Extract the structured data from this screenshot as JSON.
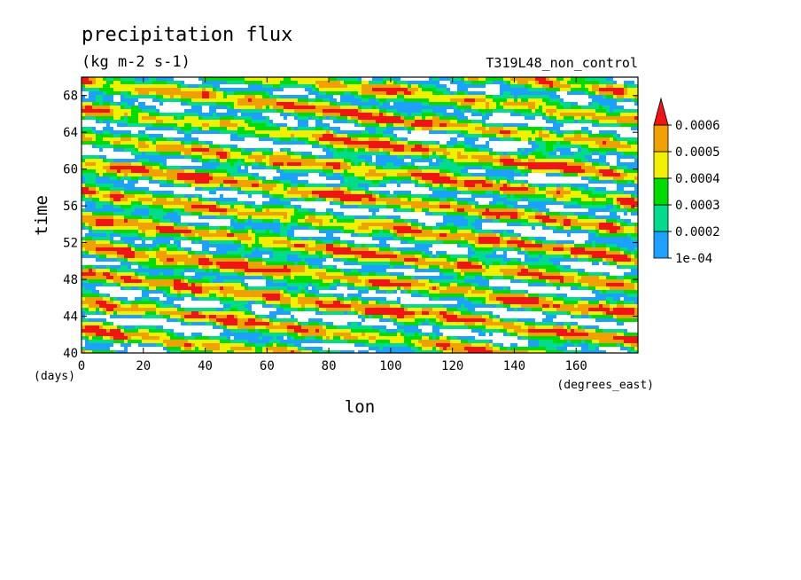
{
  "chart_data": {
    "type": "heatmap",
    "title": "precipitation flux",
    "units": "(kg m-2 s-1)",
    "run_label": "T319L48_non_control",
    "xlabel": "lon",
    "xunits": "(degrees_east)",
    "ylabel": "time",
    "yunits": "(days)",
    "xlim": [
      0,
      180
    ],
    "ylim": [
      40,
      70
    ],
    "xticks": [
      "0",
      "20",
      "40",
      "60",
      "80",
      "100",
      "120",
      "140",
      "160"
    ],
    "xtick_values": [
      0,
      20,
      40,
      60,
      80,
      100,
      120,
      140,
      160
    ],
    "yticks": [
      "40",
      "44",
      "48",
      "52",
      "56",
      "60",
      "64",
      "68"
    ],
    "ytick_values": [
      40,
      44,
      48,
      52,
      56,
      60,
      64,
      68
    ],
    "colorbar": {
      "labels": [
        "1e-04",
        "0.0002",
        "0.0003",
        "0.0004",
        "0.0005",
        "0.0006"
      ],
      "levels": [
        0.0001,
        0.0002,
        0.0003,
        0.0004,
        0.0005,
        0.0006
      ],
      "colors": [
        "#ffffff",
        "#1ea0ff",
        "#00dc8c",
        "#00dc00",
        "#f0f000",
        "#f0a000",
        "#f01414"
      ],
      "extend": "max"
    },
    "pattern": "eastward-propagating precipitation bands (tilted streaks from upper-left to lower-right)"
  }
}
